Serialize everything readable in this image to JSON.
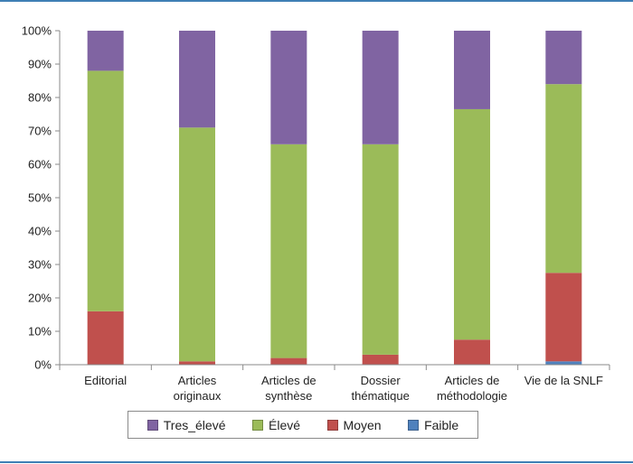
{
  "chart_data": {
    "type": "bar",
    "stacked": true,
    "percent": true,
    "categories": [
      [
        "Editorial"
      ],
      [
        "Articles",
        "originaux"
      ],
      [
        "Articles de",
        "synthèse"
      ],
      [
        "Dossier",
        "thématique"
      ],
      [
        "Articles de",
        "méthodologie"
      ],
      [
        "Vie de la SNLF"
      ]
    ],
    "yticks": [
      "0%",
      "10%",
      "20%",
      "30%",
      "40%",
      "50%",
      "60%",
      "70%",
      "80%",
      "90%",
      "100%"
    ],
    "ylim": [
      0,
      100
    ],
    "series": [
      {
        "name": "Faible",
        "color": "#4f81bd",
        "values": [
          0,
          0,
          0,
          0,
          0,
          1
        ]
      },
      {
        "name": "Moyen",
        "color": "#c0504d",
        "values": [
          16,
          1,
          2,
          3,
          7.5,
          26.5
        ]
      },
      {
        "name": "Élevé",
        "color": "#9bbb59",
        "values": [
          72,
          70,
          64,
          63,
          69,
          56.5
        ]
      },
      {
        "name": "Tres_élevé",
        "color": "#8064a2",
        "values": [
          12,
          29,
          34,
          34,
          23.5,
          16
        ]
      }
    ],
    "legend_order": [
      "Tres_élevé",
      "Élevé",
      "Moyen",
      "Faible"
    ],
    "legend_position": "bottom"
  }
}
